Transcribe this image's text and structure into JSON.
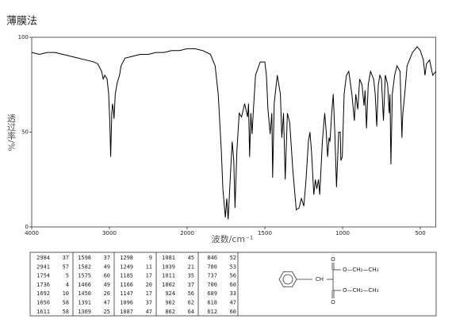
{
  "chart_data": {
    "type": "line",
    "title": "薄膜法",
    "x_label": "波数/cm⁻¹",
    "y_label": "透过率/%",
    "x": [
      4000,
      3900,
      3800,
      3700,
      3600,
      3500,
      3400,
      3300,
      3200,
      3150,
      3100,
      3080,
      3060,
      3030,
      3010,
      2995,
      2984,
      2970,
      2960,
      2950,
      2941,
      2925,
      2900,
      2870,
      2850,
      2800,
      2700,
      2600,
      2500,
      2400,
      2300,
      2200,
      2100,
      2000,
      1950,
      1900,
      1850,
      1820,
      1800,
      1780,
      1770,
      1754,
      1745,
      1736,
      1720,
      1710,
      1700,
      1692,
      1680,
      1665,
      1650,
      1630,
      1611,
      1605,
      1598,
      1590,
      1582,
      1575,
      1560,
      1530,
      1500,
      1490,
      1480,
      1466,
      1455,
      1450,
      1440,
      1420,
      1400,
      1391,
      1380,
      1369,
      1355,
      1340,
      1320,
      1298,
      1280,
      1265,
      1249,
      1235,
      1220,
      1210,
      1200,
      1185,
      1175,
      1166,
      1155,
      1147,
      1130,
      1115,
      1105,
      1096,
      1087,
      1081,
      1070,
      1060,
      1050,
      1039,
      1025,
      1015,
      1011,
      1002,
      990,
      975,
      960,
      940,
      924,
      915,
      902,
      890,
      875,
      862,
      855,
      846,
      835,
      820,
      800,
      790,
      780,
      770,
      760,
      750,
      737,
      725,
      710,
      700,
      695,
      689,
      680,
      665,
      650,
      630,
      618,
      615,
      612,
      600,
      585,
      570,
      550,
      520,
      500,
      480,
      470,
      460,
      440,
      420,
      400
    ],
    "series": [
      {
        "color": "#000000",
        "values": [
          92,
          91,
          92,
          92,
          91,
          90,
          89,
          88,
          87,
          86,
          82,
          78,
          80,
          78,
          70,
          55,
          37,
          60,
          65,
          62,
          57,
          70,
          76,
          80,
          85,
          89,
          90,
          91,
          91,
          92,
          92,
          93,
          93,
          94,
          94,
          93,
          91,
          85,
          70,
          40,
          20,
          5,
          15,
          4,
          30,
          45,
          35,
          10,
          40,
          60,
          58,
          65,
          58,
          65,
          37,
          60,
          49,
          60,
          80,
          87,
          87,
          80,
          62,
          49,
          60,
          26,
          65,
          80,
          70,
          47,
          60,
          25,
          60,
          55,
          30,
          9,
          10,
          15,
          11,
          25,
          45,
          50,
          40,
          17,
          25,
          20,
          25,
          17,
          45,
          60,
          50,
          37,
          47,
          45,
          60,
          70,
          50,
          21,
          50,
          50,
          35,
          37,
          70,
          80,
          82,
          70,
          56,
          70,
          62,
          78,
          75,
          64,
          72,
          52,
          75,
          82,
          78,
          70,
          53,
          75,
          80,
          78,
          56,
          80,
          75,
          60,
          70,
          33,
          70,
          80,
          85,
          82,
          47,
          55,
          60,
          70,
          85,
          88,
          92,
          95,
          93,
          88,
          80,
          86,
          88,
          80,
          82
        ]
      }
    ],
    "xlim": [
      4000,
      400
    ],
    "xticks": [
      4000,
      3000,
      2000,
      1500,
      1000,
      500
    ],
    "ylim": [
      0,
      100
    ],
    "yticks": [
      0,
      50,
      100
    ]
  },
  "peak_table": {
    "rows": [
      [
        2984,
        37,
        1598,
        37,
        1298,
        9,
        1081,
        45,
        846,
        52
      ],
      [
        2941,
        57,
        1582,
        49,
        1249,
        11,
        1039,
        21,
        780,
        53
      ],
      [
        1754,
        5,
        1575,
        60,
        1185,
        17,
        1011,
        35,
        737,
        56
      ],
      [
        1736,
        4,
        1466,
        49,
        1166,
        20,
        1002,
        37,
        700,
        60
      ],
      [
        1692,
        10,
        1450,
        26,
        1147,
        17,
        924,
        56,
        689,
        33
      ],
      [
        1650,
        58,
        1391,
        47,
        1096,
        37,
        902,
        62,
        618,
        47
      ],
      [
        1611,
        58,
        1369,
        25,
        1087,
        47,
        862,
        64,
        612,
        60
      ]
    ]
  },
  "structure": {
    "labels": [
      "O",
      "CH",
      "O—CH₂—CH₃",
      "O—CH₂—CH₃",
      "O"
    ]
  }
}
